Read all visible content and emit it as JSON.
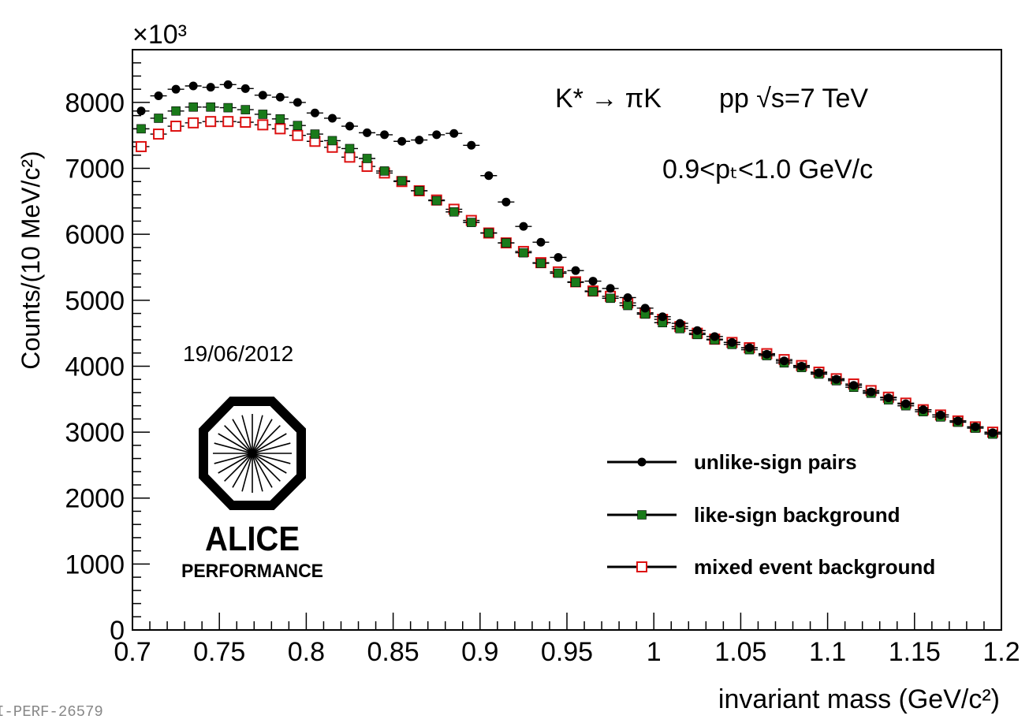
{
  "chart_data": {
    "type": "scatter",
    "title": "",
    "scale_label": "×10³",
    "xlabel": "invariant mass (GeV/c²)",
    "ylabel": "Counts/(10 MeV/c²)",
    "xlim": [
      0.7,
      1.2
    ],
    "ylim": [
      0,
      8800
    ],
    "x_ticks": [
      0.7,
      0.75,
      0.8,
      0.85,
      0.9,
      0.95,
      1.0,
      1.05,
      1.1,
      1.15,
      1.2
    ],
    "x_tick_labels": [
      "0.7",
      "0.75",
      "0.8",
      "0.85",
      "0.9",
      "0.95",
      "1",
      "1.05",
      "1.1",
      "1.15",
      "1.2"
    ],
    "y_ticks": [
      0,
      1000,
      2000,
      3000,
      4000,
      5000,
      6000,
      7000,
      8000
    ],
    "y_tick_labels": [
      "0",
      "1000",
      "2000",
      "3000",
      "4000",
      "5000",
      "6000",
      "7000",
      "8000"
    ],
    "grid": false,
    "legend_position": "bottom-right",
    "x": [
      0.705,
      0.715,
      0.725,
      0.735,
      0.745,
      0.755,
      0.765,
      0.775,
      0.785,
      0.795,
      0.805,
      0.815,
      0.825,
      0.835,
      0.845,
      0.855,
      0.865,
      0.875,
      0.885,
      0.895,
      0.905,
      0.915,
      0.925,
      0.935,
      0.945,
      0.955,
      0.965,
      0.975,
      0.985,
      0.995,
      1.005,
      1.015,
      1.025,
      1.035,
      1.045,
      1.055,
      1.065,
      1.075,
      1.085,
      1.095,
      1.105,
      1.115,
      1.125,
      1.135,
      1.145,
      1.155,
      1.165,
      1.175,
      1.185,
      1.195
    ],
    "series": [
      {
        "name": "unlike-sign pairs",
        "color": "#000000",
        "marker": "filled-circle",
        "values": [
          7870,
          8100,
          8200,
          8250,
          8230,
          8270,
          8210,
          8110,
          8080,
          8000,
          7840,
          7760,
          7640,
          7540,
          7510,
          7410,
          7430,
          7510,
          7530,
          7350,
          6890,
          6490,
          6120,
          5880,
          5650,
          5450,
          5290,
          5180,
          5040,
          4880,
          4750,
          4650,
          4540,
          4450,
          4360,
          4280,
          4180,
          4080,
          4000,
          3900,
          3800,
          3710,
          3610,
          3520,
          3430,
          3340,
          3260,
          3170,
          3080,
          2990
        ]
      },
      {
        "name": "like-sign background",
        "color": "#1a7a1a",
        "marker": "filled-square",
        "values": [
          7600,
          7760,
          7870,
          7930,
          7930,
          7920,
          7890,
          7820,
          7750,
          7650,
          7520,
          7420,
          7300,
          7150,
          6960,
          6810,
          6660,
          6510,
          6340,
          6180,
          6020,
          5870,
          5720,
          5560,
          5410,
          5270,
          5130,
          5030,
          4920,
          4790,
          4660,
          4570,
          4480,
          4400,
          4330,
          4250,
          4160,
          4050,
          3980,
          3880,
          3780,
          3680,
          3590,
          3490,
          3400,
          3310,
          3230,
          3150,
          3060,
          2970
        ]
      },
      {
        "name": "mixed event background",
        "color": "#dd1111",
        "marker": "open-square",
        "values": [
          7330,
          7520,
          7640,
          7690,
          7710,
          7710,
          7700,
          7660,
          7600,
          7500,
          7410,
          7320,
          7170,
          7030,
          6930,
          6800,
          6660,
          6520,
          6380,
          6210,
          6020,
          5870,
          5740,
          5570,
          5430,
          5280,
          5140,
          5060,
          4960,
          4810,
          4710,
          4600,
          4500,
          4410,
          4360,
          4280,
          4190,
          4100,
          4010,
          3910,
          3810,
          3730,
          3630,
          3530,
          3440,
          3340,
          3260,
          3170,
          3080,
          3000
        ]
      }
    ],
    "annotations": [
      {
        "kind": "reaction",
        "text": "K* → πK"
      },
      {
        "kind": "system",
        "text": "pp √s=7 TeV"
      },
      {
        "kind": "pt_range",
        "text": "0.9<pₜ<1.0 GeV/c"
      },
      {
        "kind": "date",
        "text": "19/06/2012"
      }
    ]
  },
  "logo": {
    "name_text": "ALICE",
    "sub_text": "PERFORMANCE"
  },
  "figure_id": "I-PERF-26579"
}
